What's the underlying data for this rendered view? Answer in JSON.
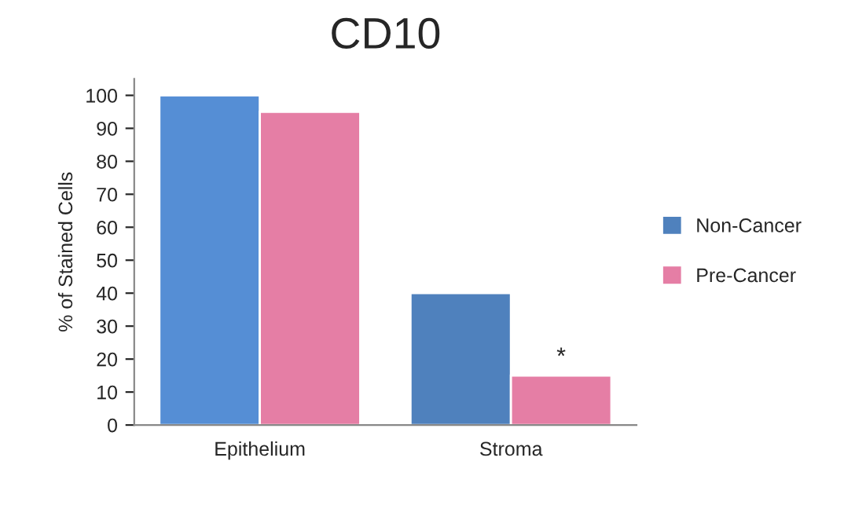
{
  "chart_data": {
    "type": "bar",
    "title": "CD10",
    "ylabel": "% of Stained Cells",
    "categories": [
      "Epithelium",
      "Stroma"
    ],
    "series": [
      {
        "name": "Non-Cancer",
        "color": "#4f81bd",
        "colors": [
          "#558ed5",
          "#4f81bd"
        ],
        "values": [
          100,
          40
        ]
      },
      {
        "name": "Pre-Cancer",
        "color": "#e57ea5",
        "values": [
          95,
          15
        ]
      }
    ],
    "ylim": [
      0,
      105
    ],
    "yticks": [
      0,
      10,
      20,
      30,
      40,
      50,
      60,
      70,
      80,
      90,
      100
    ],
    "grid": false,
    "legend": "right",
    "annotations": [
      {
        "text": "*",
        "x": "Stroma",
        "y": 15
      }
    ]
  }
}
